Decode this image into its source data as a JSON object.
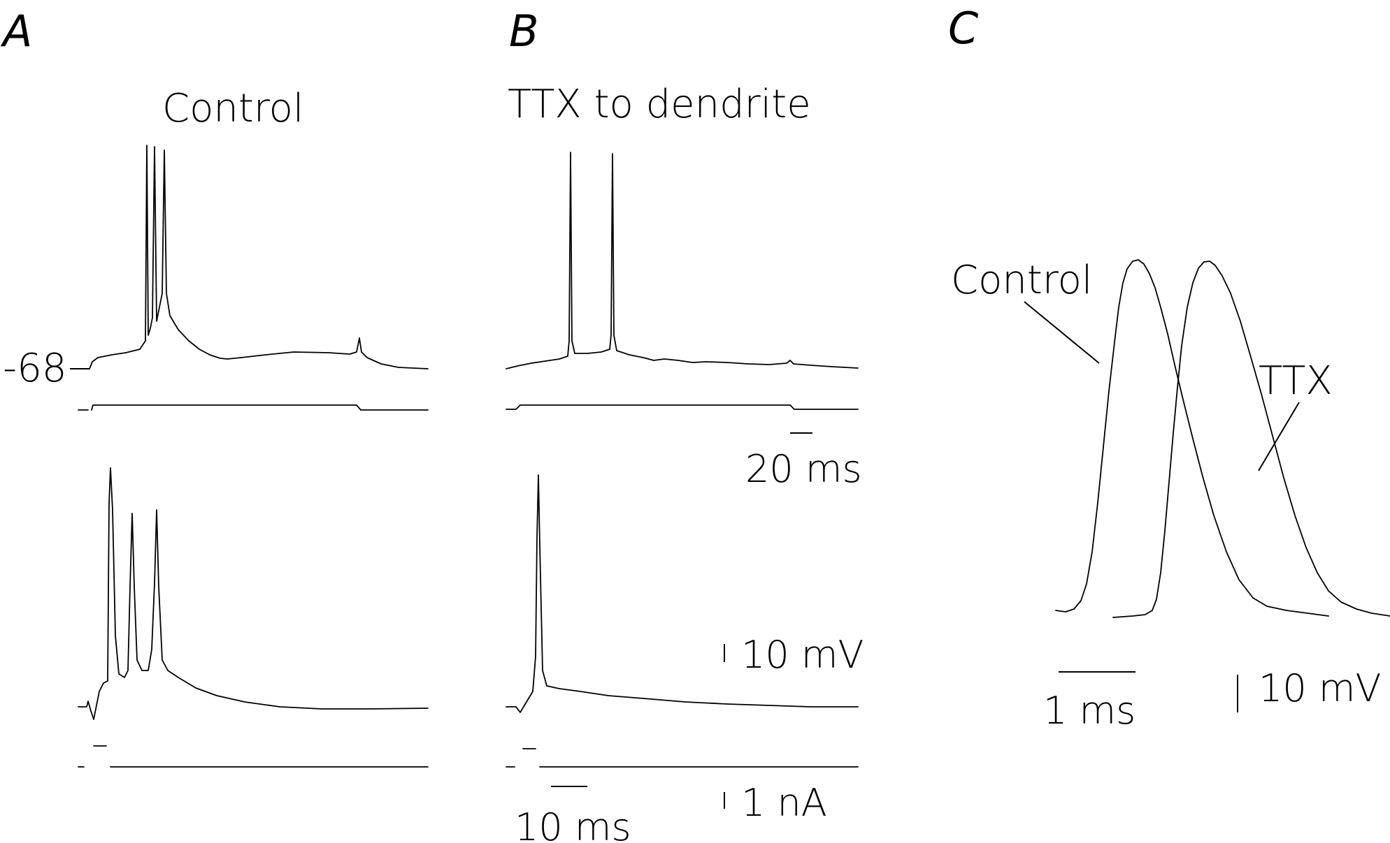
{
  "panels": {
    "a": {
      "letter": "A",
      "title": "Control",
      "resting_potential_label": "-68"
    },
    "b": {
      "letter": "B",
      "title": "TTX to dendrite",
      "top_time_scale": "20 ms",
      "voltage_scale": "10 mV",
      "current_scale": "1 nA",
      "bottom_time_scale": "10 ms"
    },
    "c": {
      "letter": "C",
      "control_label": "Control",
      "ttx_label": "TTX",
      "time_scale": "1 ms",
      "voltage_scale": "10 mV"
    }
  }
}
